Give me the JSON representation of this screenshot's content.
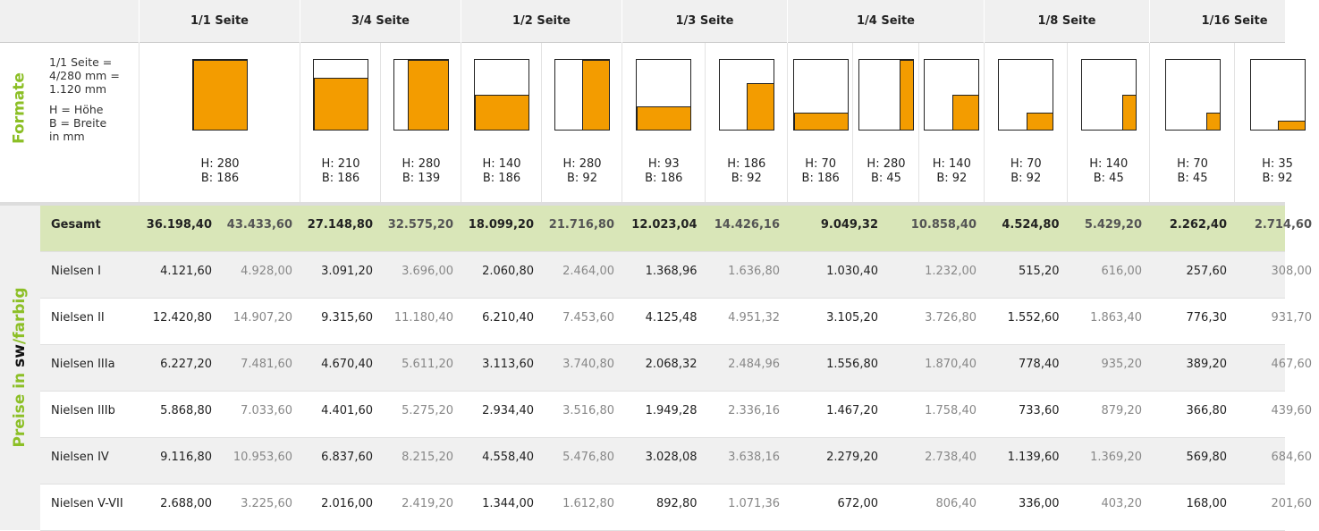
{
  "corner": "",
  "formats_label": "Formate",
  "formats_note": [
    "1/1 Seite =",
    "4/280 mm =",
    "1.120 mm",
    "H = Höhe",
    "B = Breite",
    "in mm"
  ],
  "prices_label": [
    "Preise in ",
    "sw",
    "/farbig"
  ],
  "groups": [
    {
      "title": "1/1 Seite",
      "formats": [
        {
          "h": "H: 280",
          "b": "B: 186"
        }
      ]
    },
    {
      "title": "3/4 Seite",
      "formats": [
        {
          "h": "H: 210",
          "b": "B: 186"
        },
        {
          "h": "H: 280",
          "b": "B: 139"
        }
      ]
    },
    {
      "title": "1/2 Seite",
      "formats": [
        {
          "h": "H: 140",
          "b": "B: 186"
        },
        {
          "h": "H: 280",
          "b": "B: 92"
        }
      ]
    },
    {
      "title": "1/3 Seite",
      "formats": [
        {
          "h": "H: 93",
          "b": "B: 186"
        },
        {
          "h": "H: 186",
          "b": "B: 92"
        }
      ]
    },
    {
      "title": "1/4 Seite",
      "formats": [
        {
          "h": "H: 70",
          "b": "B: 186"
        },
        {
          "h": "H: 280",
          "b": "B: 45"
        },
        {
          "h": "H: 140",
          "b": "B: 92"
        }
      ]
    },
    {
      "title": "1/8 Seite",
      "formats": [
        {
          "h": "H: 70",
          "b": "B: 92"
        },
        {
          "h": "H: 140",
          "b": "B: 45"
        }
      ]
    },
    {
      "title": "1/16 Seite",
      "formats": [
        {
          "h": "H: 70",
          "b": "B: 45"
        },
        {
          "h": "H: 35",
          "b": "B: 92"
        }
      ]
    }
  ],
  "rows": [
    {
      "label": "Gesamt",
      "values": [
        "36.198,40",
        "43.433,60",
        "27.148,80",
        "32.575,20",
        "18.099,20",
        "21.716,80",
        "12.023,04",
        "14.426,16",
        "9.049,32",
        "10.858,40",
        "4.524,80",
        "5.429,20",
        "2.262,40",
        "2.714,60"
      ]
    },
    {
      "label": "Nielsen I",
      "values": [
        "4.121,60",
        "4.928,00",
        "3.091,20",
        "3.696,00",
        "2.060,80",
        "2.464,00",
        "1.368,96",
        "1.636,80",
        "1.030,40",
        "1.232,00",
        "515,20",
        "616,00",
        "257,60",
        "308,00"
      ]
    },
    {
      "label": "Nielsen II",
      "values": [
        "12.420,80",
        "14.907,20",
        "9.315,60",
        "11.180,40",
        "6.210,40",
        "7.453,60",
        "4.125,48",
        "4.951,32",
        "3.105,20",
        "3.726,80",
        "1.552,60",
        "1.863,40",
        "776,30",
        "931,70"
      ]
    },
    {
      "label": "Nielsen IIIa",
      "values": [
        "6.227,20",
        "7.481,60",
        "4.670,40",
        "5.611,20",
        "3.113,60",
        "3.740,80",
        "2.068,32",
        "2.484,96",
        "1.556,80",
        "1.870,40",
        "778,40",
        "935,20",
        "389,20",
        "467,60"
      ]
    },
    {
      "label": "Nielsen IIIb",
      "values": [
        "5.868,80",
        "7.033,60",
        "4.401,60",
        "5.275,20",
        "2.934,40",
        "3.516,80",
        "1.949,28",
        "2.336,16",
        "1.467,20",
        "1.758,40",
        "733,60",
        "879,20",
        "366,80",
        "439,60"
      ]
    },
    {
      "label": "Nielsen IV",
      "values": [
        "9.116,80",
        "10.953,60",
        "6.837,60",
        "8.215,20",
        "4.558,40",
        "5.476,80",
        "3.028,08",
        "3.638,16",
        "2.279,20",
        "2.738,40",
        "1.139,60",
        "1.369,20",
        "569,80",
        "684,60"
      ]
    },
    {
      "label": "Nielsen V-VII",
      "values": [
        "2.688,00",
        "3.225,60",
        "2.016,00",
        "2.419,20",
        "1.344,00",
        "1.612,80",
        "892,80",
        "1.071,36",
        "672,00",
        "806,40",
        "336,00",
        "403,20",
        "168,00",
        "201,60"
      ]
    }
  ]
}
